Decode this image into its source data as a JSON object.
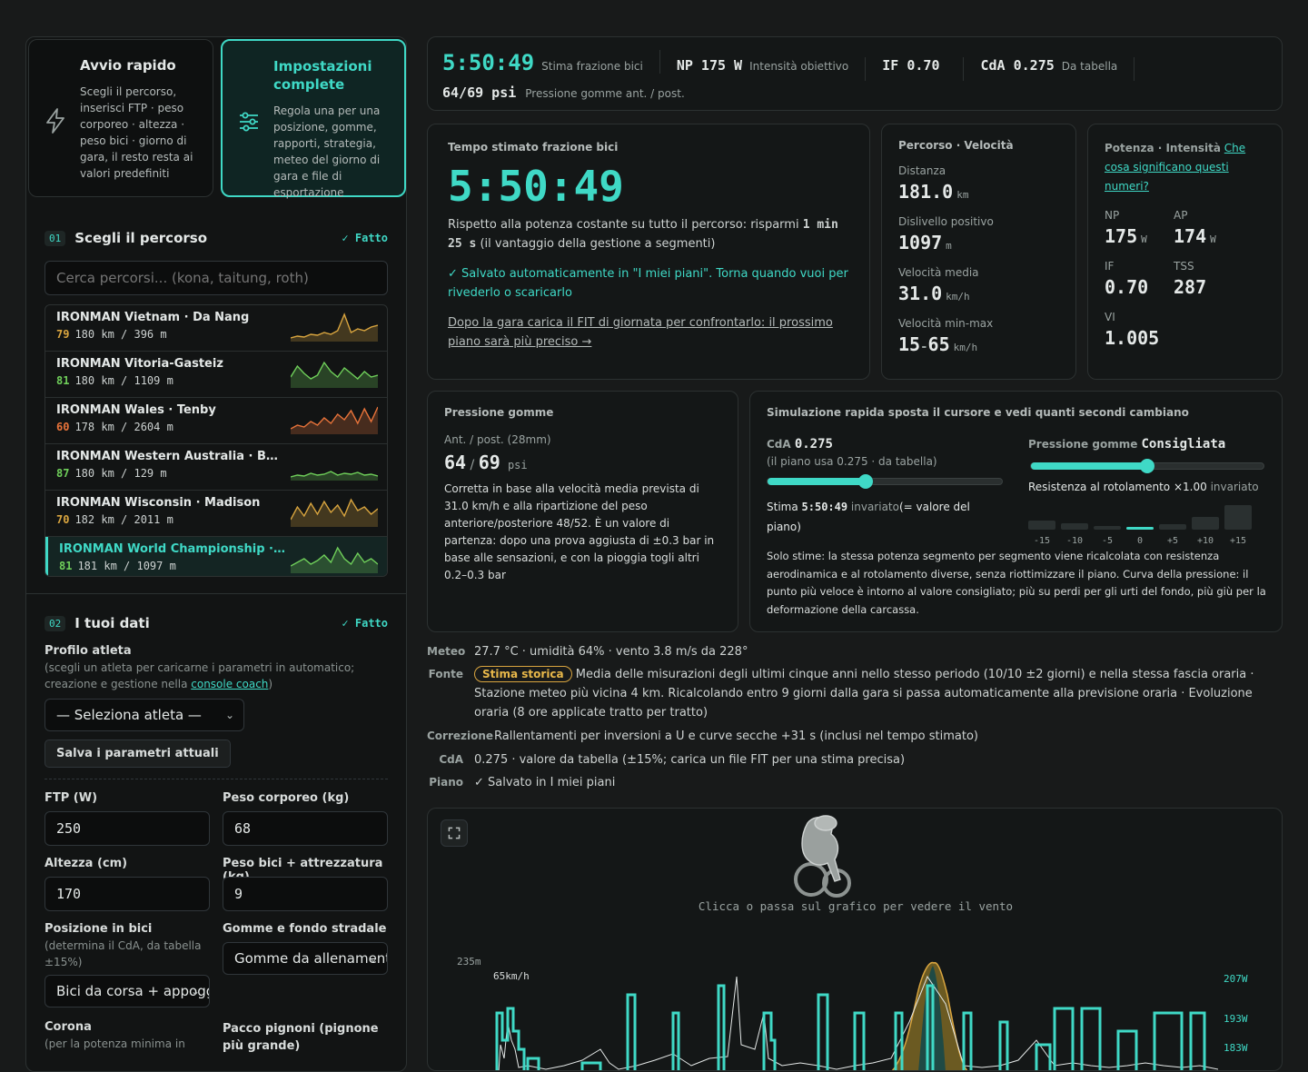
{
  "quick_start": {
    "title": "Avvio rapido",
    "desc": "Scegli il percorso, inserisci FTP · peso corporeo · altezza · peso bici · giorno di gara, il resto resta ai valori predefiniti",
    "icon": "lightning-icon"
  },
  "full_settings": {
    "title": "Impostazioni complete",
    "desc": "Regola una per una posizione, gomme, rapporti, strategia, meteo del giorno di gara e file di esportazione",
    "icon": "sliders-icon"
  },
  "step1": {
    "num": "01",
    "title": "Scegli il percorso",
    "done": "✓ Fatto",
    "search_placeholder": "Cerca percorsi... (kona, taitung, roth)",
    "routes": [
      {
        "name": "IRONMAN Vietnam · Da Nang",
        "score": "79",
        "meta": "180 km / 396 m",
        "color": "#d9a53f"
      },
      {
        "name": "IRONMAN Vitoria-Gasteiz",
        "score": "81",
        "meta": "180 km / 1109 m",
        "color": "#6fcf5a"
      },
      {
        "name": "IRONMAN Wales · Tenby",
        "score": "60",
        "meta": "178 km / 2604 m",
        "color": "#e8733a"
      },
      {
        "name": "IRONMAN Western Australia · Busselton",
        "score": "87",
        "meta": "180 km / 129 m",
        "color": "#6fcf5a"
      },
      {
        "name": "IRONMAN Wisconsin · Madison",
        "score": "70",
        "meta": "182 km / 2011 m",
        "color": "#d9a53f"
      },
      {
        "name": "IRONMAN World Championship · Kona",
        "score": "81",
        "meta": "181 km / 1097 m",
        "color": "#6fcf5a"
      }
    ]
  },
  "step2": {
    "num": "02",
    "title": "I tuoi dati",
    "done": "✓ Fatto",
    "profile_label": "Profilo atleta",
    "profile_sub_a": "(scegli un atleta per caricarne i parametri in automatico; creazione e gestione nella ",
    "profile_link": "console coach",
    "profile_sub_b": ")",
    "athlete_select": "— Seleziona atleta —",
    "save_params": "Salva i parametri attuali",
    "ftp_label": "FTP (W)",
    "ftp_value": "250",
    "weight_label": "Peso corporeo (kg)",
    "weight_value": "68",
    "height_label": "Altezza (cm)",
    "height_value": "170",
    "bike_label": "Peso bici + attrezzatura (kg)",
    "bike_value": "9",
    "position_label": "Posizione in bici",
    "position_sub": "(determina il CdA, da tabella ±15%)",
    "position_value": "Bici da corsa + appoggi",
    "tires_label": "Gomme e fondo stradale",
    "tires_value": "Gomme da allenamento",
    "chainring_label": "Corona",
    "chainring_sub": "(per la potenza minima in",
    "cassette_label": "Pacco pignoni (pignone più grande)"
  },
  "summary": {
    "time": "5:50:49",
    "time_label": "Stima frazione bici",
    "np": "NP 175 W",
    "np_label": "Intensità obiettivo",
    "if": "IF 0.70",
    "cda": "CdA 0.275",
    "cda_label": "Da tabella",
    "psi": "64/69 psi",
    "psi_label": "Pressione gomme ant. / post."
  },
  "time_card": {
    "title": "Tempo stimato frazione bici",
    "time": "5:50:49",
    "desc_a": "Rispetto alla potenza costante su tutto il percorso: risparmi ",
    "desc_bold": "1 min 25 s",
    "desc_b": " (il vantaggio della gestione a segmenti)",
    "saved": "✓ Salvato automaticamente in \"I miei piani\". Torna quando vuoi per rivederlo o scaricarlo",
    "fit_link": "Dopo la gara carica il FIT di giornata per confrontarlo: il prossimo piano sarà più preciso →"
  },
  "route_card": {
    "title": "Percorso · Velocità",
    "distance_label": "Distanza",
    "distance": "181.0",
    "distance_unit": "km",
    "climb_label": "Dislivello positivo",
    "climb": "1097",
    "climb_unit": "m",
    "avg_label": "Velocità media",
    "avg": "31.0",
    "avg_unit": "km/h",
    "range_label": "Velocità min-max",
    "range_min": "15",
    "range_max": "65",
    "range_unit": "km/h"
  },
  "power_card": {
    "title": "Potenza · Intensità",
    "link": "Che cosa significano questi numeri?",
    "np_label": "NP",
    "np": "175",
    "np_unit": "W",
    "ap_label": "AP",
    "ap": "174",
    "ap_unit": "W",
    "if_label": "IF",
    "if": "0.70",
    "tss_label": "TSS",
    "tss": "287",
    "vi_label": "VI",
    "vi": "1.005"
  },
  "tire_card": {
    "title": "Pressione gomme",
    "sub": "Ant. / post. (28mm)",
    "front": "64",
    "rear": "69",
    "unit": "psi",
    "desc": "Corretta in base alla velocità media prevista di 31.0 km/h e alla ripartizione del peso anteriore/posteriore 48/52. È un valore di partenza: dopo una prova aggiusta di ±0.3 bar in base alle sensazioni, e con la pioggia togli altri 0.2–0.3 bar"
  },
  "sim_card": {
    "title": "Simulazione rapida sposta il cursore e vedi quanti secondi cambiano",
    "cda_label": "CdA",
    "cda_value": "0.275",
    "cda_sub": "(il piano usa 0.275 · da tabella)",
    "cda_fraction": 0.42,
    "est_a": "Stima ",
    "est_time": "5:50:49",
    "est_b": " invariato",
    "est_c": "(= valore del piano)",
    "tire_label": "Pressione gomme",
    "tire_value": "Consigliata",
    "tire_fraction": 0.5,
    "rr_a": "Resistenza al rotolamento ×1.00",
    "rr_b": " invariato",
    "bars": [
      "-15",
      "-10",
      "-5",
      "0",
      "+5",
      "+10",
      "+15"
    ],
    "bar_levels": [
      0.35,
      0.25,
      0.15,
      0.12,
      0.22,
      0.5,
      0.95
    ],
    "note": "Solo stime: la stessa potenza segmento per segmento viene ricalcolata con resistenza aerodinamica e al rotolamento diverse, senza riottimizzare il piano. Curva della pressione: il punto più veloce è intorno al valore consigliato; più su perdi per gli urti del fondo, più giù per la deformazione della carcassa."
  },
  "info": {
    "meteo_k": "Meteo",
    "meteo": "27.7 °C · umidità 64% · vento 3.8 m/s da 228°",
    "fonte_k": "Fonte",
    "fonte_badge": "Stima storica",
    "fonte": "Media delle misurazioni degli ultimi cinque anni nello stesso periodo (10/10 ±2 giorni) e nella stessa fascia oraria · Stazione meteo più vicina 4 km. Ricalcolando entro 9 giorni dalla gara si passa automaticamente alla previsione oraria · Evoluzione oraria (8 ore applicate tratto per tratto)",
    "corr_k": "Correzione",
    "corr": "Rallentamenti per inversioni a U e curve secche +31 s (inclusi nel tempo stimato)",
    "cda_k": "CdA",
    "cda": "0.275 · valore da tabella (±15%; carica un file FIT per una stima precisa)",
    "piano_k": "Piano",
    "piano": "✓ Salvato in I miei piani"
  },
  "chart_panel": {
    "hint": "Clicca o passa sul grafico per vedere il vento",
    "y_top": "235m",
    "speed_label": "65km/h",
    "right_labels": [
      "207W",
      "193W",
      "183W"
    ]
  },
  "colors": {
    "accent": "#3fd9c6",
    "amber": "#d9a53f",
    "bg": "#181a1a"
  }
}
